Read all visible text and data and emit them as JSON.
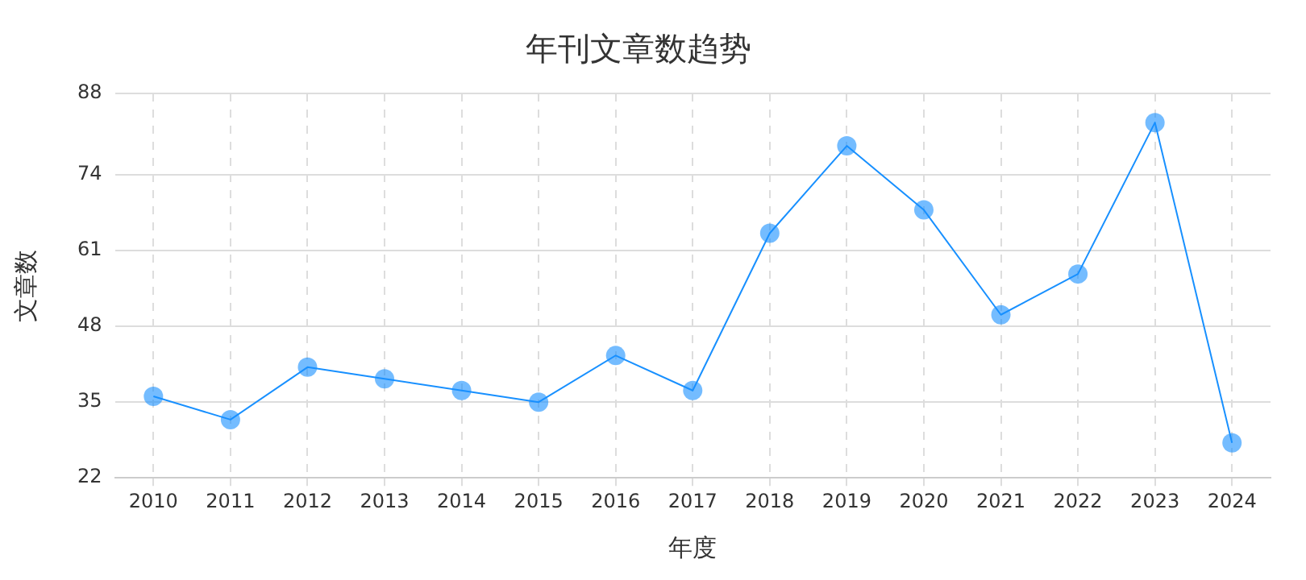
{
  "chart_data": {
    "type": "line",
    "title": "年刊文章数趋势",
    "xlabel": "年度",
    "ylabel": "文章数",
    "categories": [
      "2010",
      "2011",
      "2012",
      "2013",
      "2014",
      "2015",
      "2016",
      "2017",
      "2018",
      "2019",
      "2020",
      "2021",
      "2022",
      "2023",
      "2024"
    ],
    "series": [
      {
        "color": "#1890ff",
        "values": [
          36,
          32,
          41,
          39,
          37,
          35,
          43,
          37,
          64,
          79,
          68,
          50,
          57,
          83,
          28
        ]
      }
    ],
    "ylim": [
      22,
      88
    ],
    "yticks": [
      22,
      35,
      48,
      61,
      74,
      88
    ],
    "grid": true,
    "legend": false,
    "marker": "circle",
    "line_style": "solid"
  }
}
